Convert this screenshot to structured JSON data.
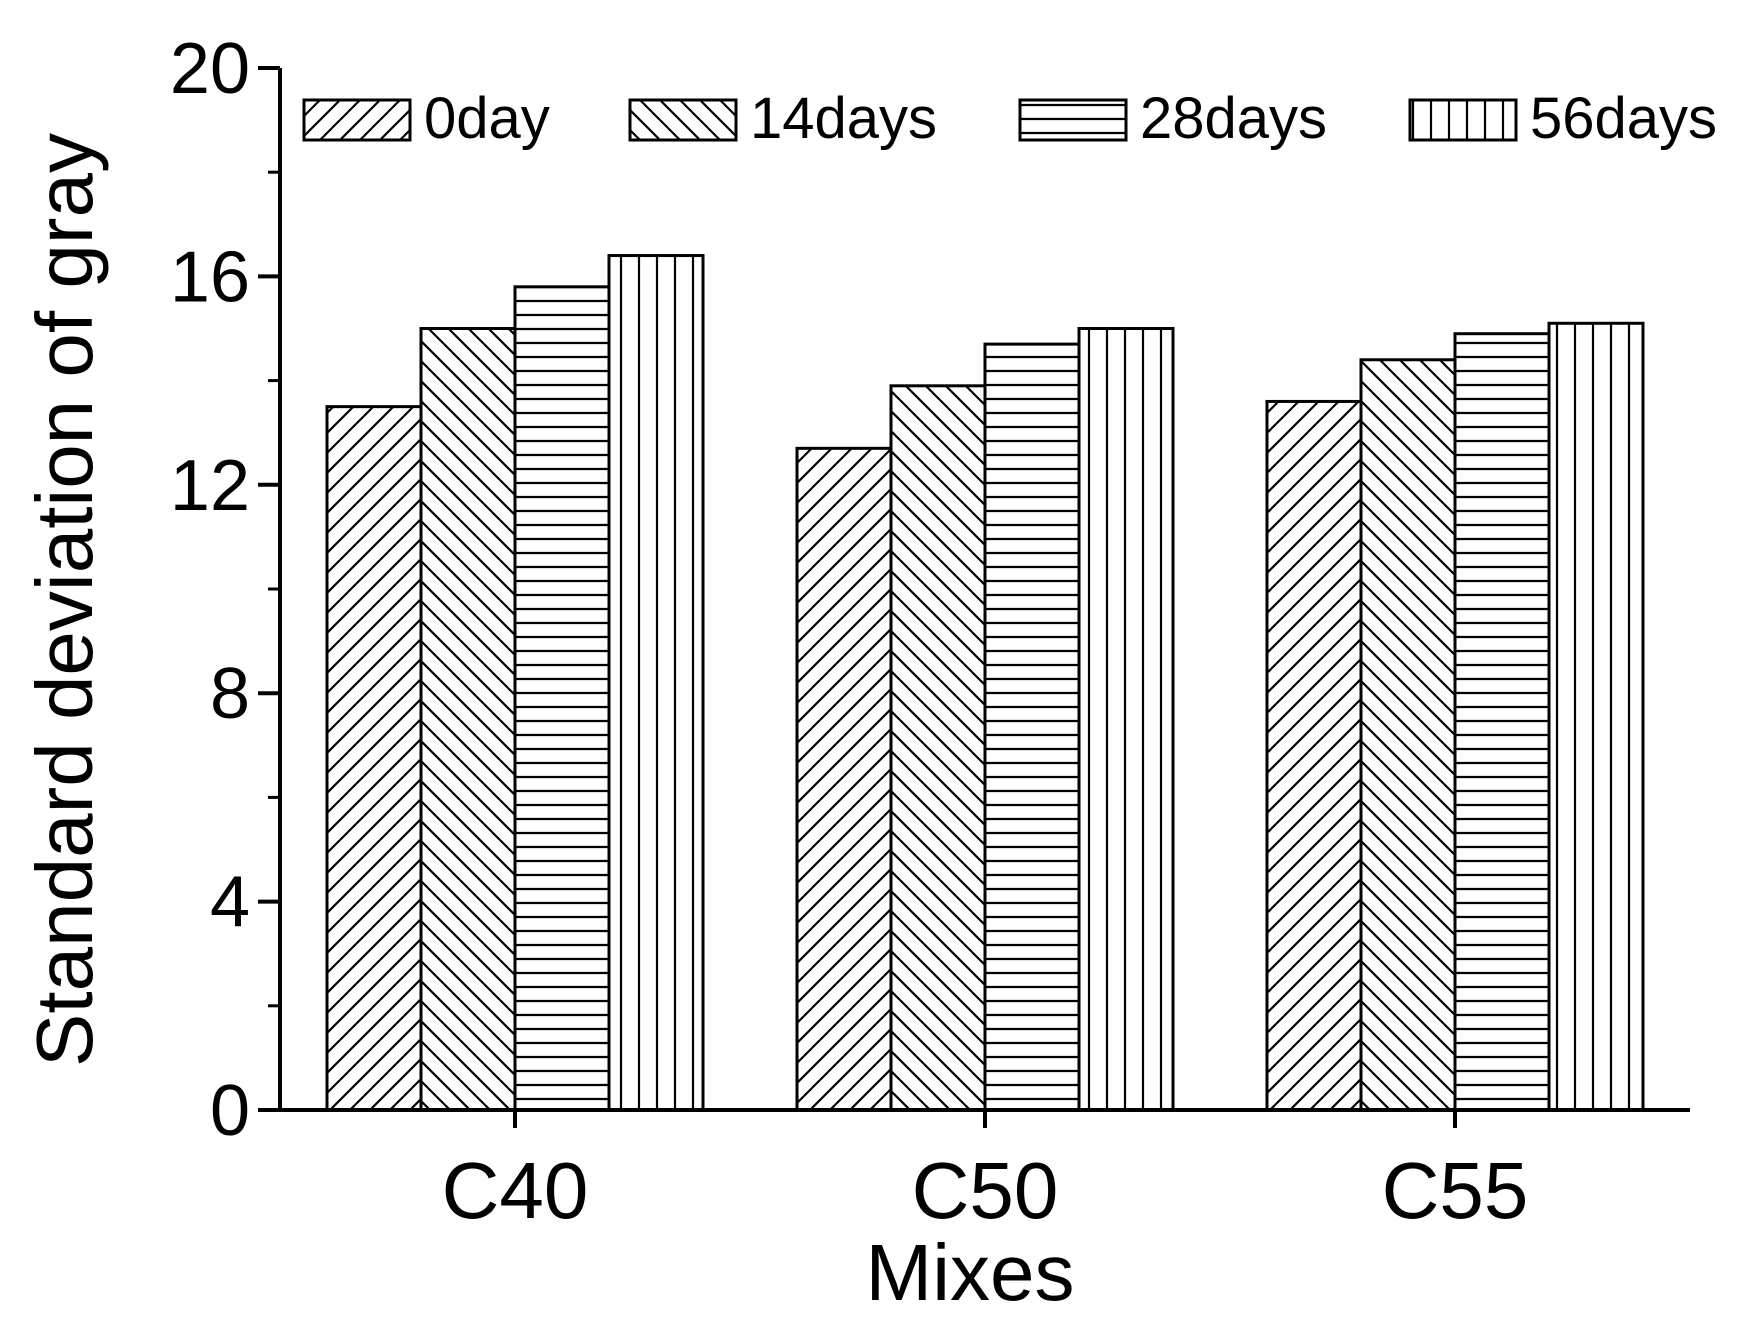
{
  "chart_data": {
    "type": "bar",
    "title": "",
    "xlabel": "Mixes",
    "ylabel": "Standard deviation of gray",
    "categories": [
      "C40",
      "C50",
      "C55"
    ],
    "series": [
      {
        "name": "0day",
        "pattern": "diagonal-up",
        "values": [
          13.5,
          12.7,
          13.6
        ]
      },
      {
        "name": "14days",
        "pattern": "diagonal-down",
        "values": [
          15.0,
          13.9,
          14.4
        ]
      },
      {
        "name": "28days",
        "pattern": "horizontal",
        "values": [
          15.8,
          14.7,
          14.9
        ]
      },
      {
        "name": "56days",
        "pattern": "vertical",
        "values": [
          16.4,
          15.0,
          15.1
        ]
      }
    ],
    "ylim": [
      0,
      20
    ],
    "yticks": [
      "0",
      "4",
      "8",
      "12",
      "16",
      "20"
    ],
    "legend_position": "top",
    "grid": false,
    "colors": {
      "stroke": "#000000",
      "fill": "#ffffff"
    }
  }
}
